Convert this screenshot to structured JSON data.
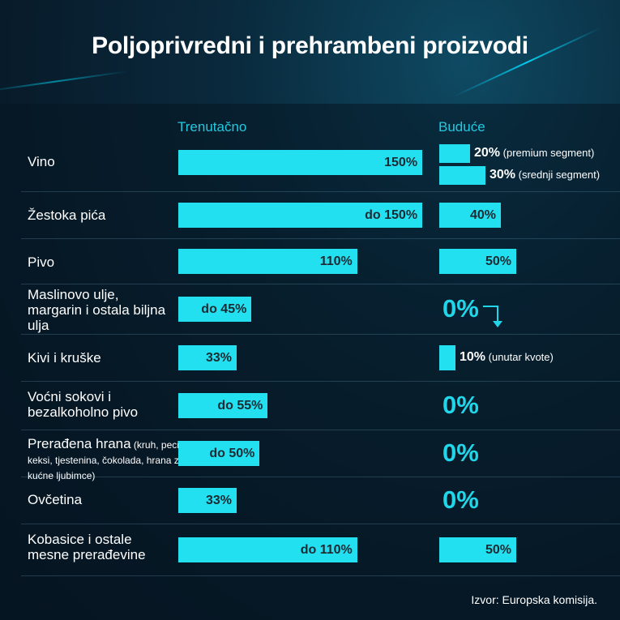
{
  "title": "Poljoprivredni i prehrambeni proizvodi",
  "source": "Izvor: Europska komisija.",
  "colors": {
    "bar": "#22e0f0",
    "accent": "#22c9e0",
    "zero": "#22d6ea"
  },
  "chart_data": {
    "type": "bar",
    "title": "Poljoprivredni i prehrambeni proizvodi",
    "unit": "%",
    "series_names": [
      "Trenutačno",
      "Buduće"
    ],
    "rows": [
      {
        "category": "Vino",
        "current": {
          "value": 150,
          "label": "150%"
        },
        "future": [
          {
            "value": 20,
            "label": "20%",
            "note": "(premium segment)"
          },
          {
            "value": 30,
            "label": "30%",
            "note": "(srednji segment)"
          }
        ]
      },
      {
        "category": "Žestoka pića",
        "current": {
          "value": 150,
          "label": "do 150%"
        },
        "future": [
          {
            "value": 40,
            "label": "40%"
          }
        ]
      },
      {
        "category": "Pivo",
        "current": {
          "value": 110,
          "label": "110%"
        },
        "future": [
          {
            "value": 50,
            "label": "50%"
          }
        ]
      },
      {
        "category": "Maslinovo ulje, margarin i ostala biljna ulja",
        "current": {
          "value": 45,
          "label": "do 45%"
        },
        "future": [
          {
            "value": 0,
            "label": "0%",
            "arrow": "down"
          }
        ]
      },
      {
        "category": "Kivi i kruške",
        "current": {
          "value": 33,
          "label": "33%"
        },
        "future": [
          {
            "value": 10,
            "label": "10%",
            "note": "(unutar kvote)"
          }
        ]
      },
      {
        "category": "Voćni sokovi i bezalkoholno pivo",
        "current": {
          "value": 55,
          "label": "do 55%"
        },
        "future": [
          {
            "value": 0,
            "label": "0%"
          }
        ]
      },
      {
        "category": "Prerađena hrana",
        "category_note": "(kruh, peciva, keksi, tjestenina, čokolada, hrana za kućne ljubimce)",
        "current": {
          "value": 50,
          "label": "do 50%"
        },
        "future": [
          {
            "value": 0,
            "label": "0%"
          }
        ]
      },
      {
        "category": "Ovčetina",
        "current": {
          "value": 33,
          "label": "33%"
        },
        "future": [
          {
            "value": 0,
            "label": "0%"
          }
        ]
      },
      {
        "category": "Kobasice i ostale mesne prerađevine",
        "current": {
          "value": 110,
          "label": "do 110%"
        },
        "future": [
          {
            "value": 50,
            "label": "50%"
          }
        ]
      }
    ]
  }
}
